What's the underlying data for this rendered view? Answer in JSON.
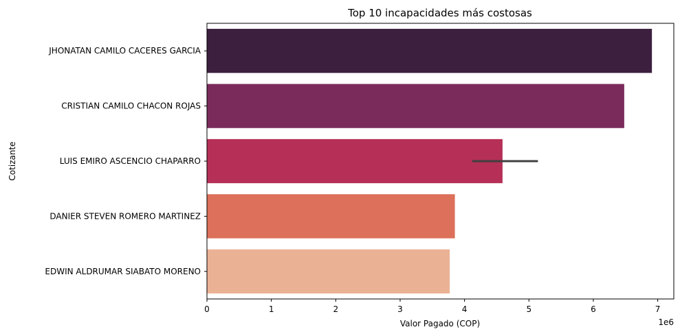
{
  "chart_data": {
    "type": "bar",
    "orientation": "horizontal",
    "title": "Top 10 incapacidades más costosas",
    "xlabel": "Valor Pagado (COP)",
    "ylabel": "Cotizante",
    "x_scale_label": "1e6",
    "xlim": [
      0,
      7.25
    ],
    "x_ticks": [
      "0",
      "1",
      "2",
      "3",
      "4",
      "5",
      "6",
      "7"
    ],
    "grid": false,
    "categories": [
      "JHONATAN CAMILO CACERES GARCIA",
      "CRISTIAN CAMILO CHACON ROJAS",
      "LUIS EMIRO ASCENCIO CHAPARRO",
      "DANIER STEVEN ROMERO MARTINEZ",
      "EDWIN ALDRUMAR SIABATO MORENO"
    ],
    "values": [
      6.91,
      6.48,
      4.59,
      3.85,
      3.77
    ],
    "error_bars": [
      null,
      null,
      [
        4.12,
        5.14
      ],
      null,
      null
    ],
    "colors": [
      "#3c1f3e",
      "#7a2b5b",
      "#b52f56",
      "#dc705a",
      "#ebb194"
    ]
  }
}
